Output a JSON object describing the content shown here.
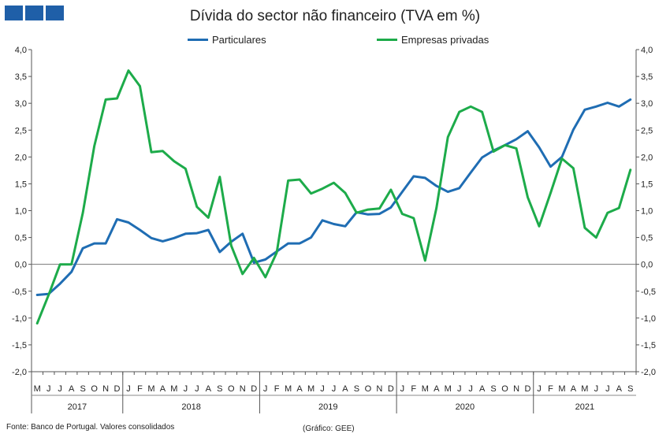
{
  "logo": {
    "icon": "three-blue-squares-icon",
    "color": "#1f5fa8"
  },
  "chart_data": {
    "type": "line",
    "title": "Dívida do sector não financeiro (TVA em %)",
    "ylim": [
      -2.0,
      4.0
    ],
    "yticks": [
      "-2,0",
      "-1,5",
      "-1,0",
      "-0,5",
      "0,0",
      "0,5",
      "1,0",
      "1,5",
      "2,0",
      "2,5",
      "3,0",
      "3,5",
      "4,0"
    ],
    "ytick_values": [
      -2.0,
      -1.5,
      -1.0,
      -0.5,
      0.0,
      0.5,
      1.0,
      1.5,
      2.0,
      2.5,
      3.0,
      3.5,
      4.0
    ],
    "grid": false,
    "legend_position": "top",
    "months": [
      "M",
      "J",
      "J",
      "A",
      "S",
      "O",
      "N",
      "D",
      "J",
      "F",
      "M",
      "A",
      "M",
      "J",
      "J",
      "A",
      "S",
      "O",
      "N",
      "D",
      "J",
      "F",
      "M",
      "A",
      "M",
      "J",
      "J",
      "A",
      "S",
      "O",
      "N",
      "D",
      "J",
      "F",
      "M",
      "A",
      "M",
      "J",
      "J",
      "A",
      "S",
      "O",
      "N",
      "D",
      "J",
      "F",
      "M",
      "A",
      "M",
      "J",
      "J",
      "A",
      "S"
    ],
    "years": [
      {
        "label": "2017",
        "start": 0,
        "end": 8
      },
      {
        "label": "2018",
        "start": 8,
        "end": 20
      },
      {
        "label": "2019",
        "start": 20,
        "end": 32
      },
      {
        "label": "2020",
        "start": 32,
        "end": 44
      },
      {
        "label": "2021",
        "start": 44,
        "end": 53
      }
    ],
    "series": [
      {
        "name": "Particulares",
        "color": "#1f6db3",
        "values": [
          -0.57,
          -0.55,
          -0.36,
          -0.14,
          0.3,
          0.39,
          0.39,
          0.84,
          0.78,
          0.64,
          0.49,
          0.43,
          0.49,
          0.57,
          0.58,
          0.64,
          0.23,
          0.42,
          0.57,
          0.03,
          0.09,
          0.24,
          0.39,
          0.39,
          0.5,
          0.82,
          0.75,
          0.71,
          0.97,
          0.93,
          0.94,
          1.06,
          1.35,
          1.64,
          1.61,
          1.46,
          1.35,
          1.42,
          1.71,
          1.99,
          2.12,
          2.22,
          2.33,
          2.48,
          2.18,
          1.82,
          2.0,
          2.51,
          2.88,
          2.94,
          3.01,
          2.94,
          3.07
        ]
      },
      {
        "name": "Empresas privadas",
        "color": "#1dab4a",
        "values": [
          -1.1,
          -0.57,
          0.0,
          0.0,
          0.96,
          2.2,
          3.07,
          3.09,
          3.61,
          3.32,
          2.09,
          2.11,
          1.92,
          1.78,
          1.07,
          0.87,
          1.63,
          0.35,
          -0.18,
          0.12,
          -0.24,
          0.22,
          1.56,
          1.58,
          1.32,
          1.41,
          1.52,
          1.33,
          0.96,
          1.02,
          1.04,
          1.39,
          0.94,
          0.86,
          0.07,
          1.05,
          2.37,
          2.84,
          2.94,
          2.84,
          2.1,
          2.22,
          2.16,
          1.25,
          0.71,
          1.33,
          1.97,
          1.79,
          0.68,
          0.5,
          0.96,
          1.05,
          1.76
        ]
      }
    ]
  },
  "source": "Fonte: Banco de Portugal. Valores consolidados",
  "credit": "(Gráfico: GEE)"
}
